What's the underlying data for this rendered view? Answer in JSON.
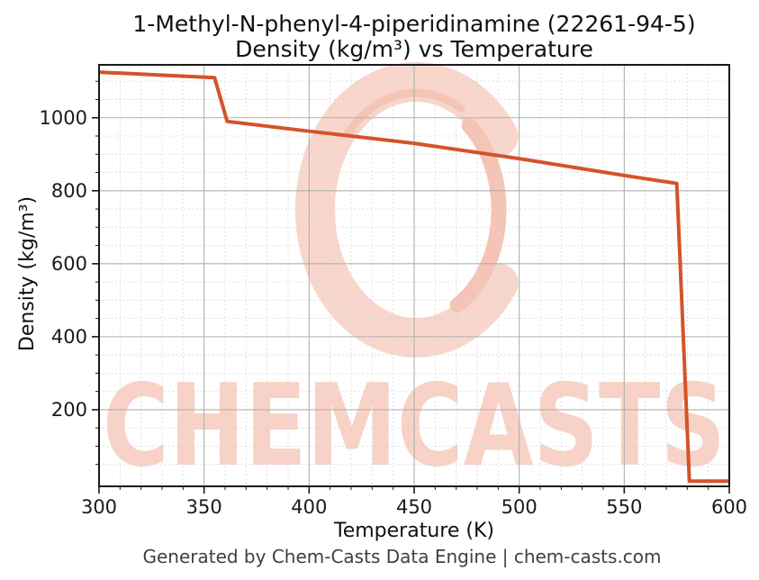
{
  "figure": {
    "title_line1": "1-Methyl-N-phenyl-4-piperidinamine (22261-94-5)",
    "title_line2": "Density (kg/m³) vs Temperature",
    "footer": "Generated by Chem-Casts Data Engine | chem-casts.com"
  },
  "watermark": {
    "text": "CHEMCASTS",
    "logo": "c-swirl-logo",
    "text_color": "#f8d2c6",
    "text_stroke_color": "#f4bfae",
    "logo_color": "#f8d6cc",
    "logo_accent_color": "#f5c4b4"
  },
  "chart_data": {
    "type": "line",
    "title": "1-Methyl-N-phenyl-4-piperidinamine (22261-94-5) Density (kg/m³) vs Temperature",
    "xlabel": "Temperature (K)",
    "ylabel": "Density (kg/m³)",
    "xlim": [
      300,
      600
    ],
    "ylim": [
      -10,
      1145
    ],
    "x_major_ticks": [
      300,
      350,
      400,
      450,
      500,
      550,
      600
    ],
    "y_major_ticks": [
      200,
      400,
      600,
      800,
      1000
    ],
    "x_minor_step": 10,
    "y_minor_step": 50,
    "grid": "major-solid-gray, minor-dotted-lightgray",
    "legend": "none",
    "axis_color": "#1a1a1a",
    "major_grid_color": "#b0b0b0",
    "minor_grid_color": "#d4d4d4",
    "series": [
      {
        "name": "Density",
        "color": "#d4532a",
        "x": [
          300,
          355,
          361,
          400,
          450,
          500,
          550,
          575,
          581,
          600
        ],
        "y": [
          1125,
          1110,
          990,
          963,
          930,
          888,
          842,
          820,
          4,
          4
        ]
      }
    ]
  }
}
